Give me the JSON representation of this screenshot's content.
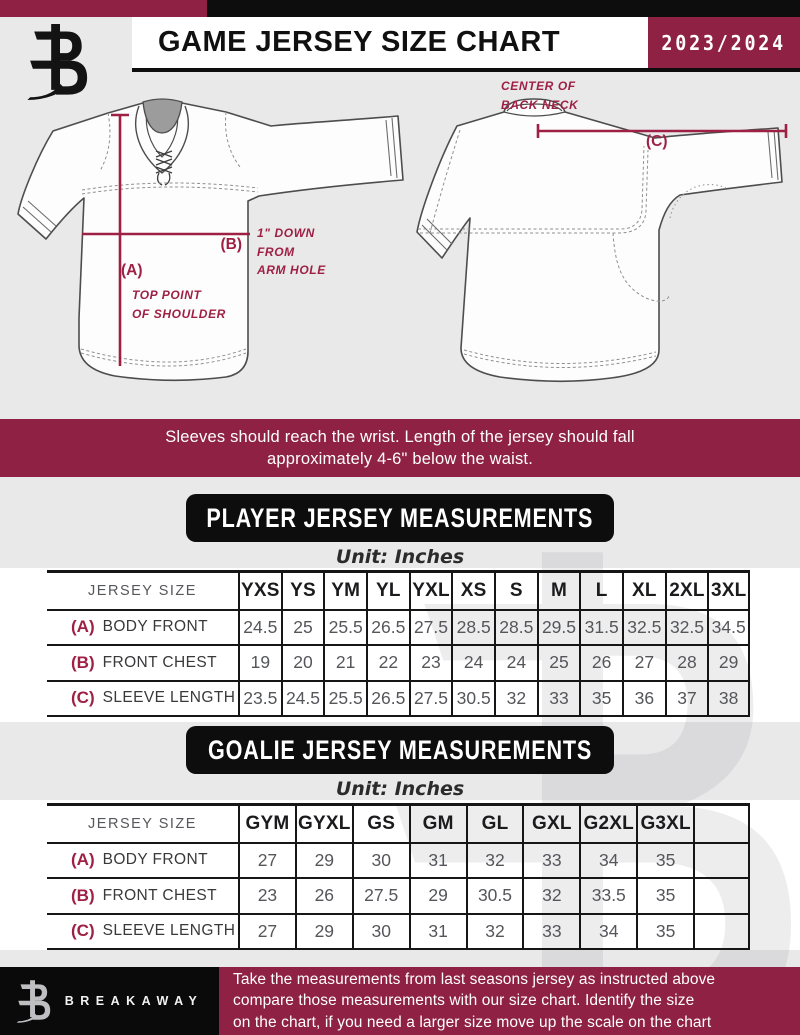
{
  "colors": {
    "maroon": "#8e2144",
    "annotation_red": "#9e2044",
    "banner_black": "#0d0d0d",
    "page_gray": "#e9e9ea",
    "table_line": "#161616",
    "value_text": "#55565a"
  },
  "header": {
    "title": "GAME JERSEY SIZE CHART",
    "season": "2023/2024",
    "logo": "breakaway-b-logo"
  },
  "diagram": {
    "front_label_a": "(A)",
    "front_note_a": "TOP POINT\nOF SHOULDER",
    "front_label_b": "(B)",
    "front_note_b": "1\" DOWN\nFROM\nARM HOLE",
    "back_label_c": "(C)",
    "back_note_c": "CENTER OF\nBACK NECK"
  },
  "notice": "Sleeves should reach the wrist. Length of the jersey should fall\napproximately 4-6\" below the waist.",
  "player_table": {
    "title": "PLAYER JERSEY MEASUREMENTS",
    "unit": "Unit: Inches",
    "size_label": "JERSEY SIZE",
    "sizes": [
      "YXS",
      "YS",
      "YM",
      "YL",
      "YXL",
      "XS",
      "S",
      "M",
      "L",
      "XL",
      "2XL",
      "3XL"
    ],
    "rows": [
      {
        "key": "(A)",
        "label": "BODY FRONT",
        "values": [
          "24.5",
          "25",
          "25.5",
          "26.5",
          "27.5",
          "28.5",
          "28.5",
          "29.5",
          "31.5",
          "32.5",
          "32.5",
          "34.5"
        ]
      },
      {
        "key": "(B)",
        "label": "FRONT CHEST",
        "values": [
          "19",
          "20",
          "21",
          "22",
          "23",
          "24",
          "24",
          "25",
          "26",
          "27",
          "28",
          "29"
        ]
      },
      {
        "key": "(C)",
        "label": "SLEEVE LENGTH",
        "values": [
          "23.5",
          "24.5",
          "25.5",
          "26.5",
          "27.5",
          "30.5",
          "32",
          "33",
          "35",
          "36",
          "37",
          "38"
        ]
      }
    ]
  },
  "goalie_table": {
    "title": "GOALIE JERSEY MEASUREMENTS",
    "unit": "Unit: Inches",
    "size_label": "JERSEY SIZE",
    "sizes": [
      "GYM",
      "GYXL",
      "GS",
      "GM",
      "GL",
      "GXL",
      "G2XL",
      "G3XL",
      ""
    ],
    "rows": [
      {
        "key": "(A)",
        "label": "BODY FRONT",
        "values": [
          "27",
          "29",
          "30",
          "31",
          "32",
          "33",
          "34",
          "35",
          ""
        ]
      },
      {
        "key": "(B)",
        "label": "FRONT CHEST",
        "values": [
          "23",
          "26",
          "27.5",
          "29",
          "30.5",
          "32",
          "33.5",
          "35",
          ""
        ]
      },
      {
        "key": "(C)",
        "label": "SLEEVE LENGTH",
        "values": [
          "27",
          "29",
          "30",
          "31",
          "32",
          "33",
          "34",
          "35",
          ""
        ]
      }
    ]
  },
  "footer": {
    "brand": "BREAKAWAY",
    "note": "Take the measurements from last seasons jersey as instructed above\ncompare those measurements with our size chart. Identify the size\non the chart, if you need a larger size move up the scale on the chart"
  }
}
